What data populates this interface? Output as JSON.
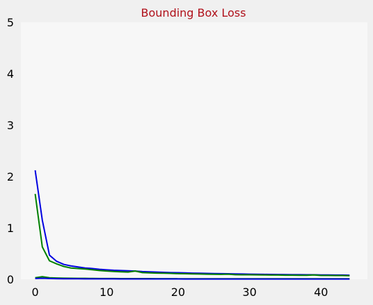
{
  "chart_data": {
    "type": "line",
    "title": "Bounding Box Loss",
    "title_color": "#b0101a",
    "xlabel": "",
    "ylabel": "",
    "xlim": [
      -2,
      46.5
    ],
    "ylim": [
      0,
      5
    ],
    "xticks": [
      0,
      10,
      20,
      30,
      40
    ],
    "yticks": [
      0,
      1,
      2,
      3,
      4,
      5
    ],
    "grid": false,
    "legend": "none",
    "colors": {
      "plot_background": "#f7f7f7",
      "figure_background": "#f0f0f0"
    },
    "series": [
      {
        "color": "#0000e0",
        "x": [
          0,
          1,
          2,
          3,
          4,
          5,
          6,
          7,
          8,
          9,
          10,
          11,
          12,
          13,
          14,
          15,
          16,
          17,
          18,
          19,
          20,
          21,
          22,
          23,
          24,
          25,
          26,
          27,
          28,
          29,
          30,
          31,
          32,
          33,
          34,
          35,
          36,
          37,
          38,
          39,
          40,
          41,
          42,
          43,
          44
        ],
        "values": [
          2.12,
          1.15,
          0.47,
          0.35,
          0.29,
          0.26,
          0.24,
          0.22,
          0.21,
          0.195,
          0.185,
          0.175,
          0.17,
          0.165,
          0.16,
          0.15,
          0.145,
          0.14,
          0.135,
          0.13,
          0.128,
          0.125,
          0.12,
          0.118,
          0.115,
          0.112,
          0.11,
          0.108,
          0.105,
          0.103,
          0.1,
          0.098,
          0.096,
          0.094,
          0.093,
          0.092,
          0.09,
          0.089,
          0.088,
          0.087,
          0.085,
          0.084,
          0.083,
          0.082,
          0.08
        ]
      },
      {
        "color": "#008000",
        "x": [
          0,
          1,
          2,
          3,
          4,
          5,
          6,
          7,
          8,
          9,
          10,
          11,
          12,
          13,
          14,
          15,
          16,
          17,
          18,
          19,
          20,
          21,
          22,
          23,
          24,
          25,
          26,
          27,
          28,
          29,
          30,
          31,
          32,
          33,
          34,
          35,
          36,
          37,
          38,
          39,
          40,
          41,
          42,
          43,
          44
        ],
        "values": [
          1.66,
          0.63,
          0.36,
          0.3,
          0.25,
          0.22,
          0.21,
          0.2,
          0.185,
          0.17,
          0.16,
          0.152,
          0.145,
          0.14,
          0.16,
          0.13,
          0.125,
          0.12,
          0.118,
          0.115,
          0.11,
          0.108,
          0.105,
          0.103,
          0.1,
          0.098,
          0.096,
          0.1,
          0.09,
          0.088,
          0.087,
          0.086,
          0.084,
          0.083,
          0.082,
          0.08,
          0.079,
          0.078,
          0.077,
          0.085,
          0.075,
          0.074,
          0.073,
          0.072,
          0.07
        ]
      },
      {
        "color": "#008000",
        "x": [
          0,
          1,
          2,
          3,
          4,
          5,
          6,
          7,
          8,
          9,
          10,
          11,
          12,
          13,
          14,
          15,
          16,
          17,
          18,
          19,
          20,
          21,
          22,
          23,
          24,
          25,
          26,
          27,
          28,
          29,
          30,
          31,
          32,
          33,
          34,
          35,
          36,
          37,
          38,
          39,
          40,
          41,
          42,
          43,
          44
        ],
        "values": [
          0.03,
          0.05,
          0.03,
          0.025,
          0.022,
          0.02,
          0.019,
          0.018,
          0.017,
          0.016,
          0.015,
          0.015,
          0.014,
          0.014,
          0.013,
          0.013,
          0.013,
          0.012,
          0.012,
          0.012,
          0.011,
          0.011,
          0.011,
          0.011,
          0.01,
          0.01,
          0.01,
          0.01,
          0.01,
          0.01,
          0.01,
          0.01,
          0.01,
          0.01,
          0.01,
          0.01,
          0.01,
          0.01,
          0.01,
          0.01,
          0.01,
          0.01,
          0.01,
          0.01,
          0.01
        ]
      },
      {
        "color": "#0000e0",
        "x": [
          0,
          1,
          2,
          3,
          4,
          5,
          6,
          7,
          8,
          9,
          10,
          11,
          12,
          13,
          14,
          15,
          16,
          17,
          18,
          19,
          20,
          21,
          22,
          23,
          24,
          25,
          26,
          27,
          28,
          29,
          30,
          31,
          32,
          33,
          34,
          35,
          36,
          37,
          38,
          39,
          40,
          41,
          42,
          43,
          44
        ],
        "values": [
          0.015,
          0.02,
          0.015,
          0.012,
          0.011,
          0.01,
          0.01,
          0.009,
          0.009,
          0.008,
          0.008,
          0.008,
          0.007,
          0.007,
          0.007,
          0.007,
          0.006,
          0.006,
          0.006,
          0.006,
          0.006,
          0.005,
          0.005,
          0.005,
          0.005,
          0.005,
          0.005,
          0.005,
          0.005,
          0.005,
          0.005,
          0.005,
          0.005,
          0.005,
          0.005,
          0.005,
          0.005,
          0.005,
          0.005,
          0.005,
          0.005,
          0.005,
          0.005,
          0.005,
          0.005
        ]
      }
    ]
  }
}
